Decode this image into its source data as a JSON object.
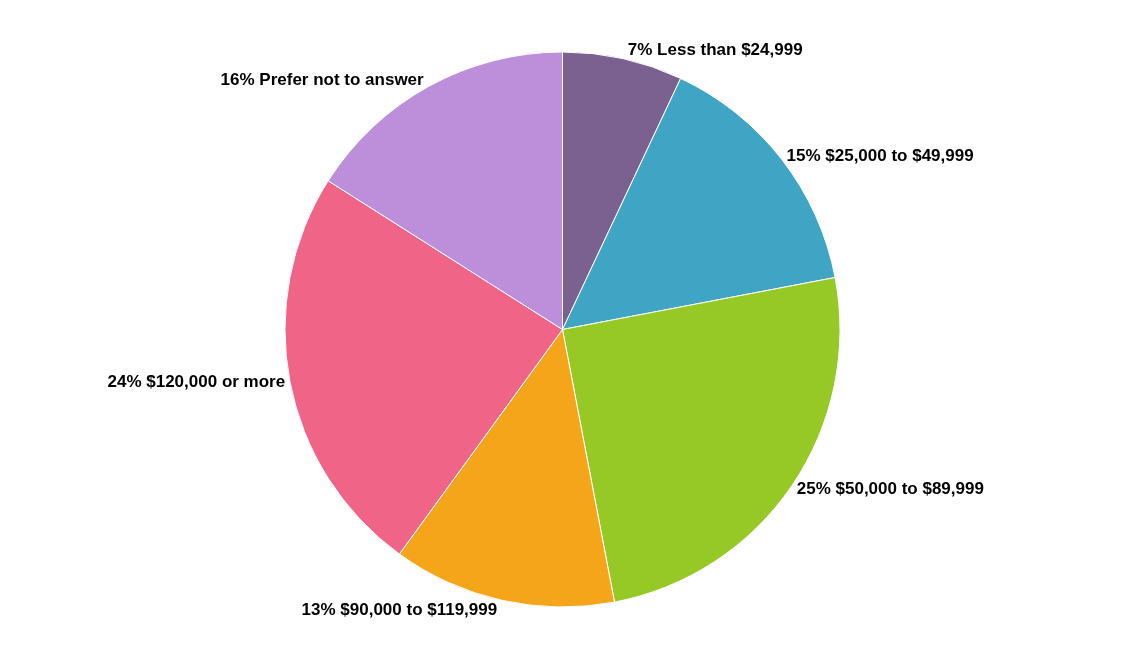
{
  "chart_data": {
    "type": "pie",
    "categories": [
      "Less than $24,999",
      "$25,000 to $49,999",
      "$50,000 to $89,999",
      "$90,000 to $119,999",
      "$120,000 or more",
      "Prefer not to answer"
    ],
    "values": [
      7,
      15,
      25,
      13,
      24,
      16
    ],
    "value_labels": [
      "7%",
      "15%",
      "25%",
      "13%",
      "24%",
      "16%"
    ],
    "colors": [
      "#7b6190",
      "#40a4c4",
      "#97c926",
      "#f4a51a",
      "#f06587",
      "#bd8fda"
    ],
    "legend": false
  }
}
